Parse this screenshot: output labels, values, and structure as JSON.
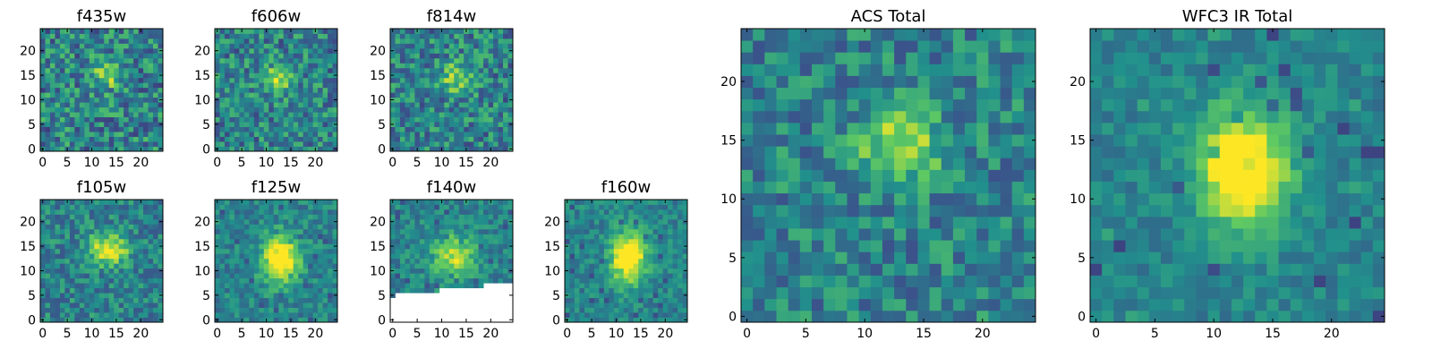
{
  "chart_data": [
    {
      "type": "heatmap",
      "title": "f435w",
      "xticks": [
        0,
        5,
        10,
        15,
        20
      ],
      "yticks": [
        0,
        5,
        10,
        15,
        20
      ],
      "xlim": [
        -0.5,
        24.5
      ],
      "ylim": [
        -0.5,
        24.5
      ],
      "size": 25,
      "colormap": "viridis"
    },
    {
      "type": "heatmap",
      "title": "f606w",
      "xticks": [
        0,
        5,
        10,
        15,
        20
      ],
      "yticks": [
        0,
        5,
        10,
        15,
        20
      ],
      "xlim": [
        -0.5,
        24.5
      ],
      "ylim": [
        -0.5,
        24.5
      ],
      "size": 25,
      "colormap": "viridis"
    },
    {
      "type": "heatmap",
      "title": "f814w",
      "xticks": [
        0,
        5,
        10,
        15,
        20
      ],
      "yticks": [
        0,
        5,
        10,
        15,
        20
      ],
      "xlim": [
        -0.5,
        24.5
      ],
      "ylim": [
        -0.5,
        24.5
      ],
      "size": 25,
      "colormap": "viridis"
    },
    {
      "type": "heatmap",
      "title": "f105w",
      "xticks": [
        0,
        5,
        10,
        15,
        20
      ],
      "yticks": [
        0,
        5,
        10,
        15,
        20
      ],
      "xlim": [
        -0.5,
        24.5
      ],
      "ylim": [
        -0.5,
        24.5
      ],
      "size": 25,
      "colormap": "viridis"
    },
    {
      "type": "heatmap",
      "title": "f125w",
      "xticks": [
        0,
        5,
        10,
        15,
        20
      ],
      "yticks": [
        0,
        5,
        10,
        15,
        20
      ],
      "xlim": [
        -0.5,
        24.5
      ],
      "ylim": [
        -0.5,
        24.5
      ],
      "size": 25,
      "colormap": "viridis"
    },
    {
      "type": "heatmap",
      "title": "f140w",
      "xticks": [
        0,
        5,
        10,
        15,
        20
      ],
      "yticks": [
        0,
        5,
        10,
        15,
        20
      ],
      "xlim": [
        -0.5,
        24.5
      ],
      "ylim": [
        -0.5,
        24.5
      ],
      "size": 25,
      "colormap": "viridis",
      "masked_region": "lower"
    },
    {
      "type": "heatmap",
      "title": "f160w",
      "xticks": [
        0,
        5,
        10,
        15,
        20
      ],
      "yticks": [
        0,
        5,
        10,
        15,
        20
      ],
      "xlim": [
        -0.5,
        24.5
      ],
      "ylim": [
        -0.5,
        24.5
      ],
      "size": 25,
      "colormap": "viridis"
    },
    {
      "type": "heatmap",
      "title": "ACS Total",
      "xticks": [
        0,
        5,
        10,
        15,
        20
      ],
      "yticks": [
        0,
        5,
        10,
        15,
        20
      ],
      "xlim": [
        -0.5,
        24.5
      ],
      "ylim": [
        -0.5,
        24.5
      ],
      "size": 25,
      "colormap": "viridis"
    },
    {
      "type": "heatmap",
      "title": "WFC3 IR Total",
      "xticks": [
        0,
        5,
        10,
        15,
        20
      ],
      "yticks": [
        0,
        5,
        10,
        15,
        20
      ],
      "xlim": [
        -0.5,
        24.5
      ],
      "ylim": [
        -0.5,
        24.5
      ],
      "size": 25,
      "colormap": "viridis"
    }
  ]
}
